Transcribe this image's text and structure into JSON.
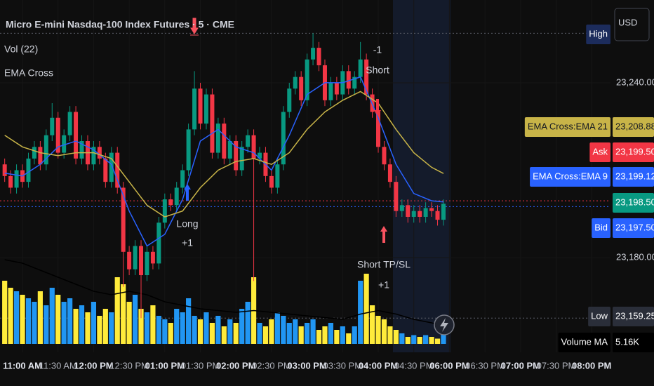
{
  "chart_data": {
    "type": "candlestick",
    "title": "Micro E-mini Nasdaq-100 Index Futures · 5 · CME",
    "indicators": [
      "Vol (22)",
      "EMA Cross"
    ],
    "currency": "USD",
    "up_color": "#089981",
    "down_color": "#f23645",
    "xlim": [
      -3.79,
      99.17
    ],
    "ylim": [
      23148,
      23268.4
    ],
    "yticks": [
      {
        "value": 23240,
        "label": "23,240.00"
      },
      {
        "value": 23180,
        "label": "23,180.00"
      }
    ],
    "xticks": [
      {
        "value": 0,
        "label": "11:00 AM"
      },
      {
        "value": 6,
        "label": "11:30 AM"
      },
      {
        "value": 12,
        "label": "12:00 PM"
      },
      {
        "value": 18,
        "label": "12:30 PM"
      },
      {
        "value": 24,
        "label": "01:00 PM"
      },
      {
        "value": 30,
        "label": "01:30 PM"
      },
      {
        "value": 36,
        "label": "02:00 PM"
      },
      {
        "value": 42,
        "label": "02:30 PM"
      },
      {
        "value": 48,
        "label": "03:00 PM"
      },
      {
        "value": 54,
        "label": "03:30 PM"
      },
      {
        "value": 60,
        "label": "04:00 PM"
      },
      {
        "value": 66,
        "label": "04:30 PM"
      },
      {
        "value": 72,
        "label": "06:00 PM"
      },
      {
        "value": 78,
        "label": "06:30 PM"
      },
      {
        "value": 84,
        "label": "07:00 PM"
      },
      {
        "value": 90,
        "label": "07:30 PM"
      },
      {
        "value": 96,
        "label": "08:00 PM"
      }
    ],
    "x": [
      -3,
      -2,
      -1,
      0,
      1,
      2,
      3,
      4,
      5,
      6,
      7,
      8,
      9,
      10,
      11,
      12,
      13,
      14,
      15,
      16,
      17,
      18,
      19,
      20,
      21,
      22,
      23,
      24,
      25,
      26,
      27,
      28,
      29,
      30,
      31,
      32,
      33,
      34,
      35,
      36,
      37,
      38,
      39,
      40,
      41,
      42,
      43,
      44,
      45,
      46,
      47,
      48,
      49,
      50,
      51,
      52,
      53,
      54,
      55,
      56,
      57,
      58,
      59,
      60,
      61,
      62,
      63,
      64,
      65,
      66,
      67,
      68,
      69,
      70,
      71
    ],
    "open": [
      23212,
      23208,
      23204,
      23210,
      23206,
      23214,
      23218,
      23212,
      23222,
      23228,
      23216,
      23222,
      23230,
      23214,
      23220,
      23212,
      23218,
      23214,
      23206,
      23216,
      23204,
      23182,
      23176,
      23184,
      23174,
      23182,
      23178,
      23192,
      23200,
      23198,
      23204,
      23210,
      23224,
      23238,
      23226,
      23236,
      23216,
      23226,
      23214,
      23220,
      23210,
      23218,
      23222,
      23214,
      23216,
      23208,
      23204,
      23212,
      23230,
      23238,
      23242,
      23234,
      23248,
      23252,
      23246,
      23234,
      23240,
      23236,
      23244,
      23238,
      23242,
      23248,
      23236,
      23230,
      23218,
      23212,
      23206,
      23196,
      23198,
      23194,
      23196,
      23194,
      23197,
      23196,
      23193
    ],
    "high": [
      23214,
      23210,
      23212,
      23212,
      23216,
      23220,
      23220,
      23224,
      23233,
      23230,
      23224,
      23232,
      23232,
      23222,
      23222,
      23220,
      23220,
      23216,
      23218,
      23218,
      23206,
      23184,
      23186,
      23186,
      23184,
      23184,
      23194,
      23202,
      23202,
      23206,
      23212,
      23226,
      23244,
      23240,
      23238,
      23238,
      23228,
      23228,
      23222,
      23222,
      23220,
      23224,
      23224,
      23218,
      23218,
      23210,
      23214,
      23232,
      23240,
      23244,
      23244,
      23250,
      23257,
      23254,
      23248,
      23242,
      23242,
      23246,
      23246,
      23244,
      23254,
      23250,
      23238,
      23232,
      23220,
      23214,
      23208,
      23200,
      23200,
      23198,
      23198,
      23199,
      23199,
      23198,
      23200
    ],
    "low": [
      23206,
      23202,
      23202,
      23204,
      23204,
      23212,
      23210,
      23210,
      23220,
      23214,
      23214,
      23220,
      23212,
      23212,
      23210,
      23210,
      23212,
      23204,
      23204,
      23202,
      23170,
      23174,
      23174,
      23159.25,
      23172,
      23176,
      23176,
      23190,
      23196,
      23196,
      23202,
      23208,
      23222,
      23224,
      23224,
      23214,
      23214,
      23212,
      23212,
      23208,
      23208,
      23216,
      23172,
      23212,
      23206,
      23202,
      23202,
      23210,
      23228,
      23236,
      23232,
      23232,
      23246,
      23244,
      23232,
      23232,
      23234,
      23234,
      23236,
      23236,
      23240,
      23234,
      23228,
      23216,
      23210,
      23204,
      23194,
      23194,
      23192,
      23192,
      23192,
      23192,
      23194,
      23191,
      23191
    ],
    "close": [
      23208,
      23204,
      23210,
      23206,
      23214,
      23218,
      23212,
      23222,
      23228,
      23216,
      23222,
      23230,
      23214,
      23220,
      23212,
      23218,
      23214,
      23206,
      23216,
      23204,
      23182,
      23176,
      23184,
      23174,
      23182,
      23178,
      23192,
      23200,
      23198,
      23204,
      23210,
      23224,
      23238,
      23226,
      23236,
      23216,
      23226,
      23214,
      23220,
      23210,
      23218,
      23222,
      23214,
      23216,
      23208,
      23204,
      23212,
      23230,
      23238,
      23242,
      23234,
      23248,
      23252,
      23246,
      23234,
      23240,
      23236,
      23244,
      23238,
      23242,
      23248,
      23236,
      23230,
      23218,
      23212,
      23206,
      23196,
      23198,
      23194,
      23196,
      23194,
      23197,
      23196,
      23193,
      23198.5
    ],
    "last_label": "23,198.50",
    "volume": {
      "up_color": "#2196f3",
      "down_color": "#ffeb3b",
      "values": [
        18000,
        16000,
        15000,
        14000,
        13000,
        12000,
        15000,
        11000,
        16000,
        14000,
        12000,
        13000,
        10000,
        11000,
        9000,
        12000,
        8000,
        10000,
        9000,
        19000,
        17000,
        12000,
        14000,
        10000,
        9000,
        11000,
        8000,
        7000,
        6000,
        10000,
        9000,
        13000,
        8000,
        7000,
        9000,
        6000,
        8000,
        5000,
        7000,
        6000,
        10000,
        12000,
        19000,
        6000,
        5000,
        7000,
        9000,
        8000,
        6000,
        7000,
        5000,
        6000,
        7000,
        4000,
        5000,
        6000,
        4000,
        5000,
        3000,
        5000,
        18000,
        20000,
        11000,
        8000,
        7000,
        5000,
        4000,
        3000,
        2000,
        2500,
        2000,
        2500,
        2000,
        1500,
        3000
      ]
    },
    "volume_ma": {
      "name": "Volume MA",
      "color": "#000000",
      "last_label": "5.16K",
      "x": [
        -3,
        0,
        3,
        6,
        9,
        12,
        15,
        18,
        21,
        24,
        27,
        30,
        33,
        36,
        39,
        42,
        45,
        48,
        51,
        54,
        57,
        60,
        63,
        66,
        69,
        71
      ],
      "values": [
        24000,
        23000,
        21000,
        19000,
        17000,
        15000,
        14000,
        15000,
        14000,
        12000,
        11000,
        10000,
        9500,
        9000,
        9500,
        9000,
        8500,
        8000,
        7500,
        7000,
        8500,
        9500,
        8500,
        7000,
        6000,
        5160
      ]
    },
    "series": [
      {
        "name": "EMA Cross:EMA 9",
        "color": "#2962ff",
        "last_label": "23,199.12",
        "x": [
          -3,
          0,
          3,
          6,
          9,
          12,
          15,
          18,
          21,
          24,
          27,
          30,
          33,
          36,
          39,
          42,
          45,
          48,
          51,
          54,
          57,
          60,
          63,
          66,
          69,
          71
        ],
        "values": [
          23209,
          23208,
          23212,
          23218,
          23220,
          23217,
          23212,
          23196,
          23184,
          23188,
          23200,
          23220,
          23224,
          23218,
          23216,
          23210,
          23222,
          23236,
          23240,
          23240,
          23242,
          23228,
          23212,
          23202,
          23199.5,
          23199.12
        ]
      },
      {
        "name": "EMA Cross:EMA 21",
        "color": "#c8b448",
        "last_label": "23,208.88",
        "x": [
          -3,
          0,
          3,
          6,
          9,
          12,
          15,
          18,
          21,
          24,
          27,
          30,
          33,
          36,
          39,
          42,
          45,
          48,
          51,
          54,
          57,
          60,
          63,
          66,
          69,
          71
        ],
        "values": [
          23222,
          23218,
          23216,
          23215,
          23216,
          23216,
          23214,
          23206,
          23198,
          23194,
          23196,
          23204,
          23210,
          23213,
          23214,
          23212,
          23216,
          23224,
          23230,
          23234,
          23237,
          23233,
          23224,
          23216,
          23211,
          23208.88
        ]
      }
    ],
    "quotes": [
      {
        "name": "Ask",
        "value": 23199.5,
        "label": "23,199.50",
        "color": "#f23645"
      },
      {
        "name": "Bid",
        "value": 23197.5,
        "label": "23,197.50",
        "color": "#2962ff"
      }
    ],
    "high_marker": {
      "name": "High",
      "value": 23257
    },
    "low_marker": {
      "name": "Low",
      "value": 23159.25,
      "label": "23,159.25"
    },
    "signals": [
      {
        "side": "Long",
        "qty": "+1"
      },
      {
        "qty": "-1",
        "side": "Short"
      },
      {
        "side": "Short TP/SL",
        "qty": "+1"
      }
    ]
  }
}
